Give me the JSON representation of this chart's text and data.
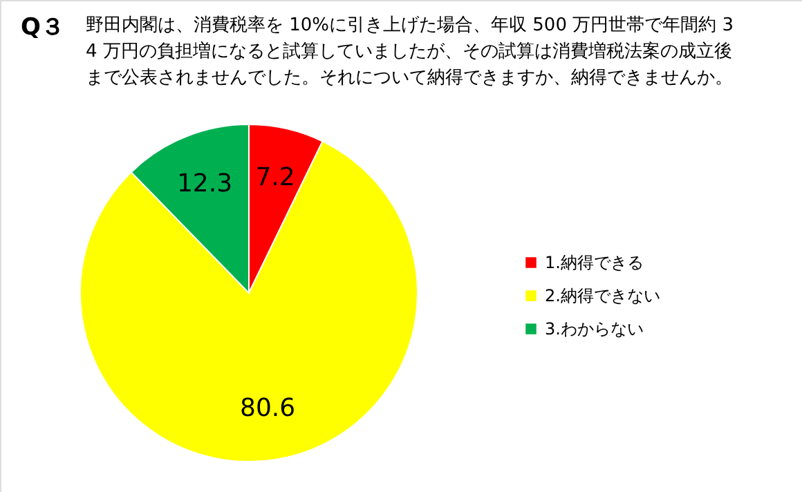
{
  "chart_data": {
    "type": "pie",
    "title": "Q３",
    "subtitle": "野田内閣は、消費税率を 10%に引き上げた場合、年収 500 万円世帯で年間約 34 万円の負担増になると試算していましたが、その試算は消費増税法案の成立後まで公表されませんでした。それについて納得できますか、納得できませんか。",
    "categories": [
      "1.納得できる",
      "2.納得できない",
      "3.わからない"
    ],
    "values": [
      7.2,
      80.6,
      12.3
    ],
    "colors": [
      "#ff0000",
      "#ffff00",
      "#00b050"
    ],
    "data_labels": true,
    "legend": "right"
  }
}
